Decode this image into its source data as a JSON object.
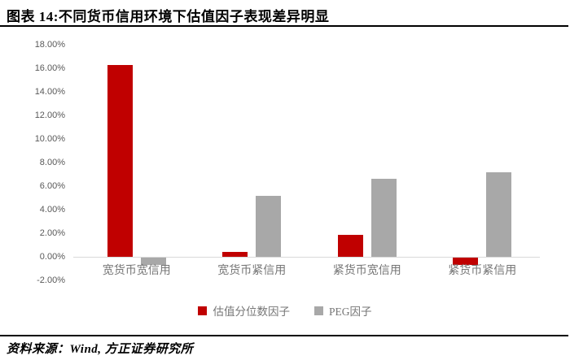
{
  "figure_title": "图表 14:不同货币信用环境下估值因子表现差异明显",
  "source_note": "资料来源：Wind, 方正证券研究所",
  "chart_data": {
    "type": "bar",
    "title": "",
    "xlabel": "",
    "ylabel": "",
    "categories": [
      "宽货币宽信用",
      "宽货币紧信用",
      "紧货币宽信用",
      "紧货币紧信用"
    ],
    "series": [
      {
        "name": "估值分位数因子",
        "color": "#c00000",
        "values": [
          16.3,
          0.4,
          1.9,
          -0.6
        ]
      },
      {
        "name": "PEG因子",
        "color": "#a8a8a8",
        "values": [
          -0.6,
          5.2,
          6.6,
          7.2
        ]
      }
    ],
    "ylim": [
      -2,
      18
    ],
    "ytick_step": 2,
    "ytick_decimals": 2,
    "ytick_suffix": "%",
    "grid": false,
    "legend_position": "bottom",
    "axis_line_color": "#d9d9d9",
    "tick_label_color": "#595959",
    "category_label_color": "#767676"
  }
}
